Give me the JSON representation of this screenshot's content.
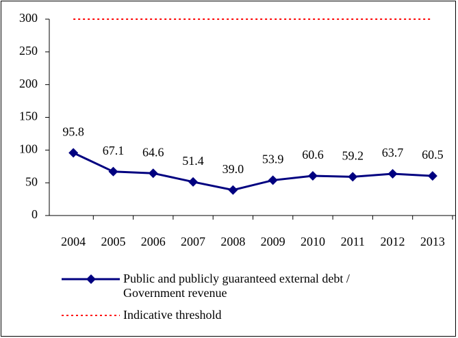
{
  "chart_data": {
    "type": "line",
    "categories": [
      "2004",
      "2005",
      "2006",
      "2007",
      "2008",
      "2009",
      "2010",
      "2011",
      "2012",
      "2013"
    ],
    "series": [
      {
        "name": "Public and publicly guaranteed external debt / Government revenue",
        "color": "#000080",
        "values": [
          95.8,
          67.1,
          64.6,
          51.4,
          39.0,
          53.9,
          60.6,
          59.2,
          63.7,
          60.5
        ],
        "value_labels": [
          "95.8",
          "67.1",
          "64.6",
          "51.4",
          "39.0",
          "53.9",
          "60.6",
          "59.2",
          "63.7",
          "60.5"
        ]
      },
      {
        "name": "Indicative threshold",
        "color": "#ff0000",
        "style": "dotted",
        "values": [
          300,
          300,
          300,
          300,
          300,
          300,
          300,
          300,
          300,
          300
        ]
      }
    ],
    "ylim": [
      0,
      300
    ],
    "yticks": [
      0,
      50,
      100,
      150,
      200,
      250,
      300
    ],
    "grid": false,
    "legend": "bottom"
  }
}
